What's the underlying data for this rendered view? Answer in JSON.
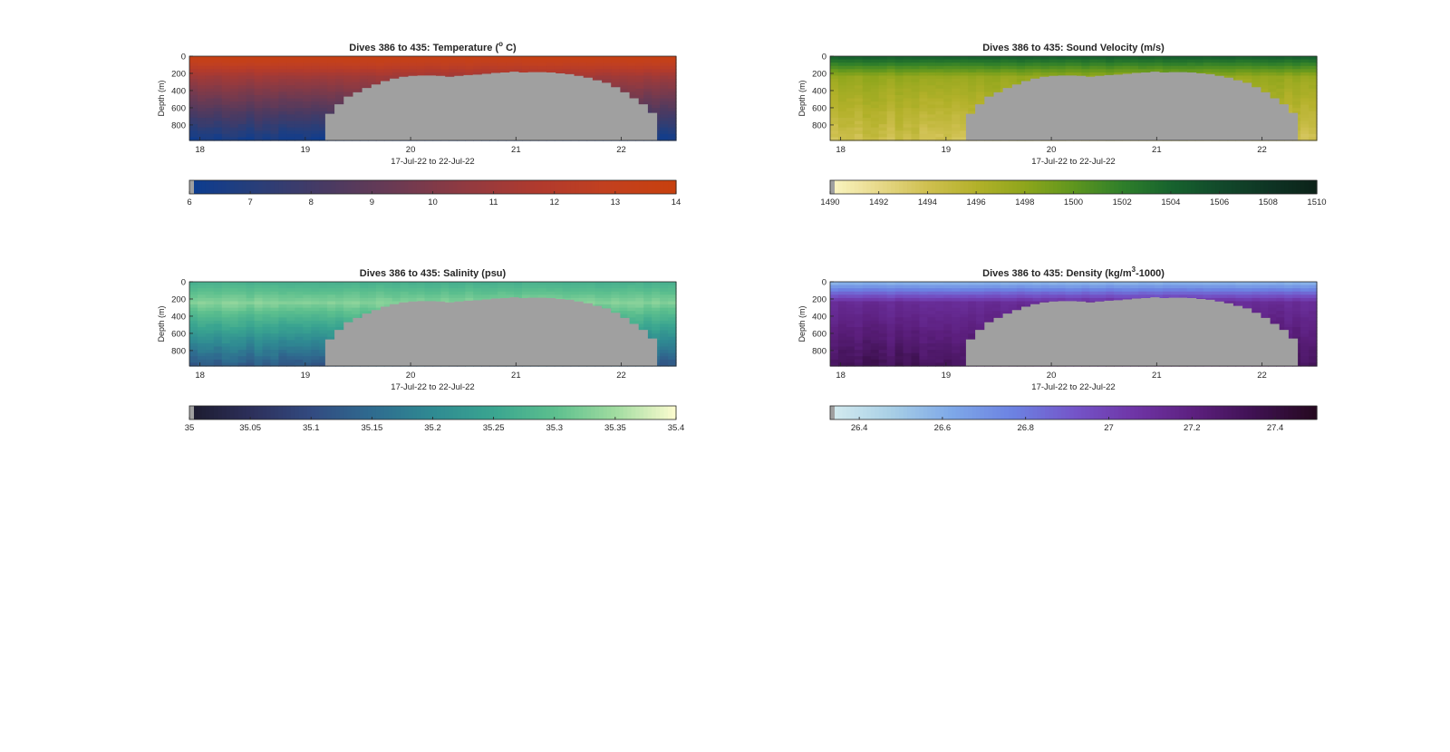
{
  "figure": {
    "background": "#ffffff",
    "bathymetry_color": "#a0a0a0"
  },
  "chart_data": [
    {
      "type": "heatmap",
      "id": "temperature",
      "title": "Dives 386 to 435: Temperature (",
      "title_sup": "o",
      "title_end": " C)",
      "xlabel": "17-Jul-22 to 22-Jul-22",
      "ylabel": "Depth (m)",
      "xlim": [
        17.9,
        22.52
      ],
      "ylim": [
        0,
        980
      ],
      "y_reversed": true,
      "xticks": [
        18,
        19,
        20,
        21,
        22
      ],
      "yticks": [
        0,
        200,
        400,
        600,
        800
      ],
      "seafloor_start_day": 19.19,
      "seafloor_end_day": 22.34,
      "seafloor_depth_m": [
        670,
        560,
        470,
        420,
        370,
        330,
        290,
        260,
        240,
        230,
        225,
        225,
        230,
        240,
        230,
        220,
        215,
        205,
        195,
        190,
        180,
        190,
        185,
        185,
        190,
        200,
        210,
        230,
        250,
        280,
        310,
        360,
        420,
        490,
        560,
        660
      ],
      "field": {
        "surface": 13.8,
        "mid": 11.0,
        "deep": 6.3
      },
      "colorbar": {
        "ticks": [
          6,
          7,
          8,
          9,
          10,
          11,
          12,
          13,
          14
        ],
        "min": 6,
        "max": 14,
        "colors": [
          "#0b3d91",
          "#2a3e78",
          "#4a3a62",
          "#6d3a52",
          "#923a40",
          "#b03a2e",
          "#c2401f",
          "#c8400e"
        ]
      }
    },
    {
      "type": "heatmap",
      "id": "sound_velocity",
      "title": "Dives 386 to 435: Sound Velocity (m/s)",
      "title_sup": "",
      "title_end": "",
      "xlabel": "17-Jul-22 to 22-Jul-22",
      "ylabel": "Depth (m)",
      "xlim": [
        17.9,
        22.52
      ],
      "ylim": [
        0,
        980
      ],
      "y_reversed": true,
      "xticks": [
        18,
        19,
        20,
        21,
        22
      ],
      "yticks": [
        0,
        200,
        400,
        600,
        800
      ],
      "seafloor_start_day": 19.19,
      "seafloor_end_day": 22.34,
      "seafloor_depth_m": [
        670,
        560,
        470,
        420,
        370,
        330,
        290,
        260,
        240,
        230,
        225,
        225,
        230,
        240,
        230,
        220,
        215,
        205,
        195,
        190,
        180,
        190,
        185,
        185,
        190,
        200,
        210,
        230,
        250,
        280,
        310,
        360,
        420,
        490,
        560,
        660
      ],
      "field": {
        "surface": 1504.5,
        "mid": 1497.5,
        "deep": 1494.0
      },
      "colorbar": {
        "ticks": [
          1490,
          1492,
          1494,
          1496,
          1498,
          1500,
          1502,
          1504,
          1506,
          1508,
          1510
        ],
        "min": 1490,
        "max": 1510,
        "colors": [
          "#fbf6c4",
          "#e7d98a",
          "#cfc050",
          "#b3b12a",
          "#8ea61c",
          "#5f961e",
          "#2f7f2a",
          "#17632e",
          "#124a2b",
          "#0e3524",
          "#0c2219"
        ]
      }
    },
    {
      "type": "heatmap",
      "id": "salinity",
      "title": "Dives 386 to 435: Salinity (psu)",
      "title_sup": "",
      "title_end": "",
      "xlabel": "17-Jul-22 to 22-Jul-22",
      "ylabel": "Depth (m)",
      "xlim": [
        17.9,
        22.52
      ],
      "ylim": [
        0,
        980
      ],
      "y_reversed": true,
      "xticks": [
        18,
        19,
        20,
        21,
        22
      ],
      "yticks": [
        0,
        200,
        400,
        600,
        800
      ],
      "seafloor_start_day": 19.19,
      "seafloor_end_day": 22.34,
      "seafloor_depth_m": [
        670,
        560,
        470,
        420,
        370,
        330,
        290,
        260,
        240,
        230,
        225,
        225,
        230,
        240,
        230,
        220,
        215,
        205,
        195,
        190,
        180,
        190,
        185,
        185,
        190,
        200,
        210,
        230,
        250,
        280,
        310,
        360,
        420,
        490,
        560,
        660
      ],
      "field": {
        "surface": 35.27,
        "mid": 35.33,
        "deep": 35.12
      },
      "colorbar": {
        "ticks": [
          35,
          35.05,
          35.1,
          35.15,
          35.2,
          35.25,
          35.3,
          35.35,
          35.4
        ],
        "min": 35,
        "max": 35.4,
        "colors": [
          "#1c1b2e",
          "#2d2f5a",
          "#324a80",
          "#2f6b8f",
          "#2f8a92",
          "#3aa590",
          "#5cbf8e",
          "#a0dca0",
          "#fdfcd0"
        ]
      }
    },
    {
      "type": "heatmap",
      "id": "density",
      "title": "Dives 386 to 435: Density (kg/m",
      "title_sup": "3",
      "title_end": "-1000)",
      "xlabel": "17-Jul-22 to 22-Jul-22",
      "ylabel": "Depth (m)",
      "xlim": [
        17.9,
        22.52
      ],
      "ylim": [
        0,
        980
      ],
      "y_reversed": true,
      "xticks": [
        18,
        19,
        20,
        21,
        22
      ],
      "yticks": [
        0,
        200,
        400,
        600,
        800
      ],
      "seafloor_start_day": 19.19,
      "seafloor_end_day": 22.34,
      "seafloor_depth_m": [
        670,
        560,
        470,
        420,
        370,
        330,
        290,
        260,
        240,
        230,
        225,
        225,
        230,
        240,
        230,
        220,
        215,
        205,
        195,
        190,
        180,
        190,
        185,
        185,
        190,
        200,
        210,
        230,
        250,
        280,
        310,
        360,
        420,
        490,
        560,
        660
      ],
      "field": {
        "surface": 26.55,
        "mid": 27.12,
        "deep": 27.32
      },
      "colorbar": {
        "ticks": [
          26.4,
          26.6,
          26.8,
          27,
          27.2,
          27.4
        ],
        "min": 26.33,
        "max": 27.5,
        "colors": [
          "#d6ecef",
          "#a8cfe6",
          "#7ea8e8",
          "#6c82e2",
          "#7455c9",
          "#6f35a6",
          "#5c1f7e",
          "#3e1150",
          "#25091f"
        ]
      }
    }
  ]
}
